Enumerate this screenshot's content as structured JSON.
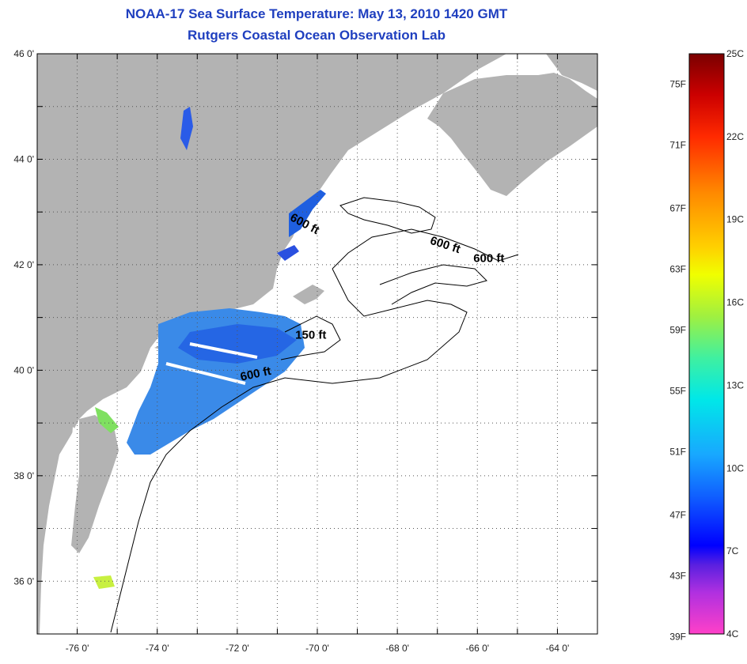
{
  "titles": {
    "line1": "NOAA-17 Sea Surface Temperature:  May 13, 2010 1420 GMT",
    "line2": "Rutgers Coastal Ocean Observation Lab"
  },
  "map": {
    "lon_range": [
      -77,
      -63
    ],
    "lat_range": [
      35,
      46
    ],
    "lon_ticks": [
      {
        "value": -76,
        "label": "-76 0'"
      },
      {
        "value": -74,
        "label": "-74 0'"
      },
      {
        "value": -72,
        "label": "-72 0'"
      },
      {
        "value": -70,
        "label": "-70 0'"
      },
      {
        "value": -68,
        "label": "-68 0'"
      },
      {
        "value": -66,
        "label": "-66 0'"
      },
      {
        "value": -64,
        "label": "-64 0'"
      }
    ],
    "lat_ticks": [
      {
        "value": 46,
        "label": "46 0'"
      },
      {
        "value": 44,
        "label": "44 0'"
      },
      {
        "value": 42,
        "label": "42 0'"
      },
      {
        "value": 40,
        "label": "40 0'"
      },
      {
        "value": 38,
        "label": "38 0'"
      },
      {
        "value": 36,
        "label": "36 0'"
      }
    ],
    "contour_labels": [
      {
        "text": "600 ft",
        "lon": -70.7,
        "lat": 42.85,
        "rotate": 28
      },
      {
        "text": "600 ft",
        "lon": -67.2,
        "lat": 42.4,
        "rotate": 18
      },
      {
        "text": "600 ft",
        "lon": -66.1,
        "lat": 42.05,
        "rotate": 0
      },
      {
        "text": "150 ft",
        "lon": -70.55,
        "lat": 40.6,
        "rotate": 0
      },
      {
        "text": "600 ft",
        "lon": -71.9,
        "lat": 39.8,
        "rotate": -12
      }
    ],
    "colors": {
      "land": "#b3b3b3",
      "ocean_nodata": "#ffffff",
      "sst_cold": "#1f5fe0",
      "sst_mid": "#3a8ae8",
      "sst_warm": "#7fe060"
    }
  },
  "colorbar": {
    "fahrenheit_labels": [
      {
        "value_c": 23.9,
        "label": "75F"
      },
      {
        "value_c": 21.7,
        "label": "71F"
      },
      {
        "value_c": 19.4,
        "label": "67F"
      },
      {
        "value_c": 17.2,
        "label": "63F"
      },
      {
        "value_c": 15.0,
        "label": "59F"
      },
      {
        "value_c": 12.8,
        "label": "55F"
      },
      {
        "value_c": 10.6,
        "label": "51F"
      },
      {
        "value_c": 8.3,
        "label": "47F"
      },
      {
        "value_c": 6.1,
        "label": "43F"
      },
      {
        "value_c": 3.9,
        "label": "39F"
      }
    ],
    "celsius_labels": [
      {
        "value_c": 25,
        "label": "25C"
      },
      {
        "value_c": 22,
        "label": "22C"
      },
      {
        "value_c": 19,
        "label": "19C"
      },
      {
        "value_c": 16,
        "label": "16C"
      },
      {
        "value_c": 13,
        "label": "13C"
      },
      {
        "value_c": 10,
        "label": "10C"
      },
      {
        "value_c": 7,
        "label": "7C"
      },
      {
        "value_c": 4,
        "label": "4C"
      }
    ],
    "range_c": [
      4,
      25
    ],
    "gradient_stops": [
      {
        "value_c": 25,
        "color": "#7a0000"
      },
      {
        "value_c": 23.5,
        "color": "#cc0000"
      },
      {
        "value_c": 22,
        "color": "#ff2a00"
      },
      {
        "value_c": 20,
        "color": "#ff8800"
      },
      {
        "value_c": 18,
        "color": "#ffd000"
      },
      {
        "value_c": 17,
        "color": "#f0ff00"
      },
      {
        "value_c": 15.5,
        "color": "#a0f040"
      },
      {
        "value_c": 14,
        "color": "#40f0a0"
      },
      {
        "value_c": 12.5,
        "color": "#00e8e8"
      },
      {
        "value_c": 10.5,
        "color": "#18a8ff"
      },
      {
        "value_c": 9,
        "color": "#1060ff"
      },
      {
        "value_c": 7.2,
        "color": "#0000ff"
      },
      {
        "value_c": 6.5,
        "color": "#5a20e0"
      },
      {
        "value_c": 5.5,
        "color": "#b030e0"
      },
      {
        "value_c": 4,
        "color": "#ff40c8"
      }
    ]
  }
}
